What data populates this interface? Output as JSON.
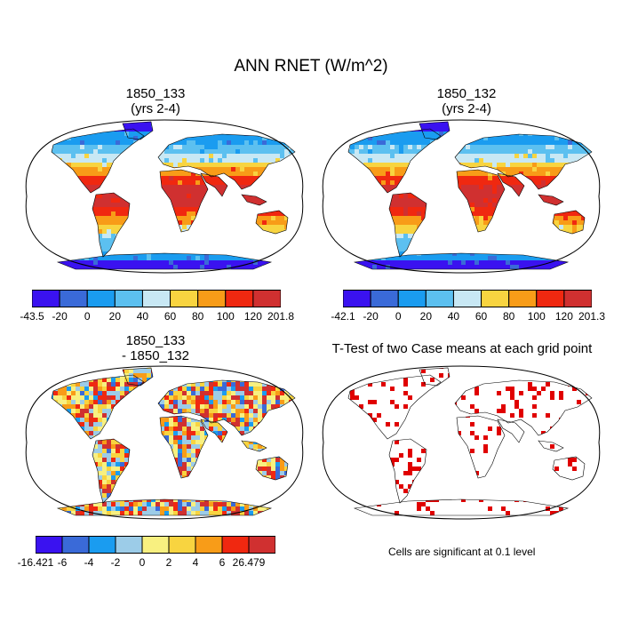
{
  "main_title": "ANN RNET (W/m^2)",
  "panels": [
    {
      "title_line1": "1850_133",
      "title_line2": "(yrs 2-4)",
      "colorbar": {
        "labels": [
          "-43.5",
          "-20",
          "0",
          "20",
          "40",
          "60",
          "80",
          "100",
          "120",
          "201.8"
        ],
        "colors": [
          "#3a12f0",
          "#3a6ad8",
          "#1a9cf0",
          "#5cc0f0",
          "#c8e8f4",
          "#f8d440",
          "#f89c18",
          "#f02810",
          "#d03030"
        ]
      }
    },
    {
      "title_line1": "1850_132",
      "title_line2": "(yrs 2-4)",
      "colorbar": {
        "labels": [
          "-42.1",
          "-20",
          "0",
          "20",
          "40",
          "60",
          "80",
          "100",
          "120",
          "201.3"
        ],
        "colors": [
          "#3a12f0",
          "#3a6ad8",
          "#1a9cf0",
          "#5cc0f0",
          "#c8e8f4",
          "#f8d440",
          "#f89c18",
          "#f02810",
          "#d03030"
        ]
      }
    },
    {
      "title_line1": "1850_133",
      "title_line2": "- 1850_132",
      "colorbar": {
        "labels": [
          "-16.421",
          "-6",
          "-4",
          "-2",
          "0",
          "2",
          "4",
          "6",
          "26.479"
        ],
        "colors": [
          "#3a12f0",
          "#3a6ad8",
          "#1a9cf0",
          "#9ccce8",
          "#f8f080",
          "#f8d440",
          "#f89c18",
          "#f02810",
          "#d03030"
        ]
      }
    },
    {
      "title_line1": "T-Test of two Case means at each grid point",
      "note": "Cells are significant at 0.1 level"
    }
  ]
}
